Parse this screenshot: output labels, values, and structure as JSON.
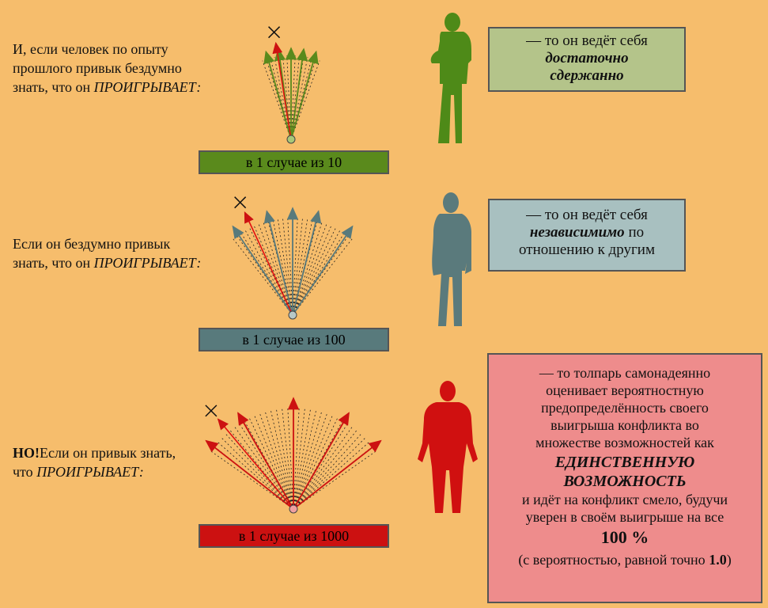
{
  "rows": [
    {
      "text_line1": "И, если человек по опыту",
      "text_line2": "прошлого привык бездумно",
      "text_line3": "знать, что он ",
      "text_italic": "ПРОИГРЫВАЕТ:",
      "caption": "в 1 случае из 10",
      "box_line1": "— то он ведёт себя",
      "box_line2": "достаточно",
      "box_line3": "сдержанно",
      "color": "#5a8a1c",
      "box_color": "#b4c48a",
      "person_color": "#4e8a18"
    },
    {
      "text_line1": "Если он бездумно привык",
      "text_line2": "знать, что он ",
      "text_italic": "ПРОИГРЫВАЕТ:",
      "caption": "в 1 случае из 100",
      "box_line1": "— то он ведёт себя",
      "box_line2_bold": "независимимо",
      "box_line2_rest": " по",
      "box_line3": "отношению к другим",
      "color": "#587a7c",
      "box_color": "#a8c0c0",
      "person_color": "#5a7a7c"
    },
    {
      "text_bold": "НО!",
      "text_line1": "Если он привык знать,",
      "text_line2": "что ",
      "text_italic": "ПРОИГРЫВАЕТ:",
      "caption": "в 1 случае из 1000",
      "box_lines": [
        "— то толпарь самонадеянно",
        "оценивает вероятностную",
        "предопределённость своего",
        "выигрыша конфликта во",
        "множестве возможностей как"
      ],
      "box_emph1": "ЕДИНСТВЕННУЮ",
      "box_emph2": "ВОЗМОЖНОСТЬ",
      "box_lines2": [
        "и идёт на конфликт смело, будучи",
        "уверен в своём выигрыше на все"
      ],
      "box_percent": "100 %",
      "box_last_pre": "(с вероятностью, равной точно ",
      "box_last_bold": "1.0",
      "box_last_post": ")",
      "color": "#cc1111",
      "box_color": "#ee8c8c",
      "person_color": "#d01010"
    }
  ]
}
